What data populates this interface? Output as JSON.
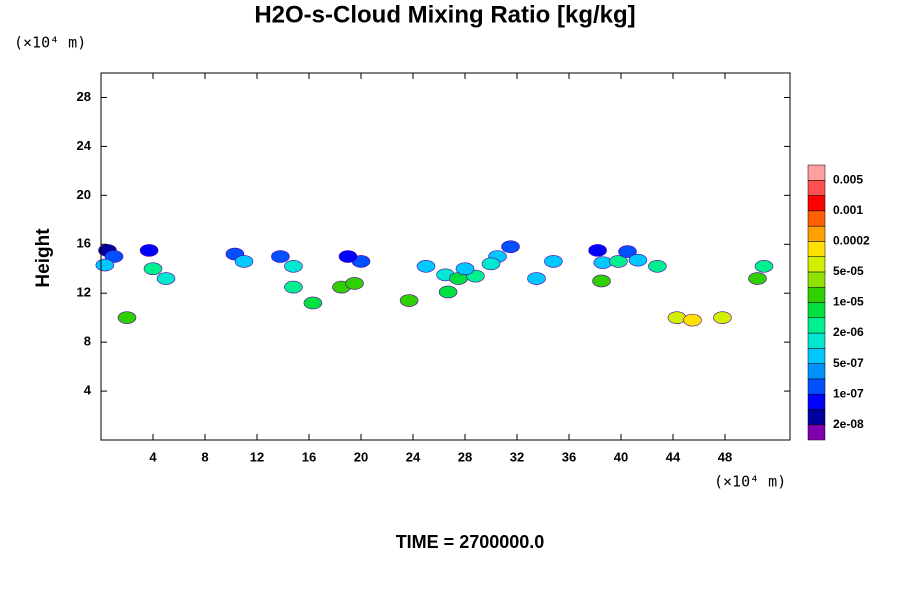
{
  "chart_data": {
    "type": "contour",
    "title": "H2O-s-Cloud Mixing Ratio [kg/kg]",
    "ylabel": "Height",
    "y_unit": "(×10⁴ m)",
    "x_unit": "(×10⁴ m)",
    "footer": "TIME = 2700000.0",
    "xlim": [
      0,
      53
    ],
    "ylim": [
      0,
      30
    ],
    "xticks": [
      4,
      8,
      12,
      16,
      20,
      24,
      28,
      32,
      36,
      40,
      44,
      48
    ],
    "yticks": [
      4,
      8,
      12,
      16,
      20,
      24,
      28
    ],
    "x": [
      0.5,
      1.0,
      0.3,
      3.7,
      4.0,
      5.0,
      10.3,
      11.0,
      13.8,
      14.8,
      14.8,
      16.3,
      18.5,
      19.5,
      20.0,
      19.0,
      25.0,
      26.5,
      27.5,
      28.8,
      28.0,
      30.5,
      31.5,
      30.0,
      34.8,
      38.2,
      38.6,
      38.5,
      39.8,
      40.5,
      41.3,
      42.8,
      44.3,
      45.5,
      47.8,
      50.5,
      51.0,
      2.0,
      23.7,
      26.7,
      33.5
    ],
    "y": [
      15.5,
      15.0,
      14.3,
      15.5,
      14.0,
      13.2,
      15.2,
      14.6,
      15.0,
      14.2,
      12.5,
      11.2,
      12.5,
      12.8,
      14.6,
      15.0,
      14.2,
      13.5,
      13.2,
      13.4,
      14.0,
      15.0,
      15.8,
      14.4,
      14.6,
      15.5,
      14.5,
      13.0,
      14.6,
      15.4,
      14.7,
      14.2,
      10.0,
      9.8,
      10.0,
      13.2,
      14.2,
      10.0,
      11.4,
      12.1,
      13.2
    ],
    "values": [
      3e-08,
      2e-07,
      5e-07,
      5e-08,
      3e-06,
      1e-06,
      1e-07,
      5e-07,
      2e-07,
      1e-06,
      3e-06,
      5e-06,
      2e-05,
      1e-05,
      2e-07,
      5e-08,
      5e-07,
      1e-06,
      5e-06,
      2e-06,
      5e-07,
      5e-07,
      1e-07,
      1e-06,
      5e-07,
      5e-08,
      5e-07,
      1e-05,
      3e-06,
      1e-07,
      5e-07,
      2e-06,
      5e-05,
      0.0001,
      5e-05,
      1e-05,
      2e-06,
      1e-05,
      1e-05,
      5e-06,
      5e-07
    ],
    "colorbar": {
      "colors": [
        "#8000b0",
        "#0000a0",
        "#0000ff",
        "#0050ff",
        "#0090ff",
        "#00c8ff",
        "#00e8d0",
        "#00f090",
        "#00e040",
        "#30d000",
        "#90e000",
        "#d0f000",
        "#ffe000",
        "#ffa000",
        "#ff6000",
        "#ff0000",
        "#ff5050",
        "#ffa0a0"
      ],
      "levels": [
        {
          "value": 2e-08,
          "label": "2e-08"
        },
        {
          "value": 1e-07,
          "label": "1e-07"
        },
        {
          "value": 5e-07,
          "label": "5e-07"
        },
        {
          "value": 2e-06,
          "label": "2e-06"
        },
        {
          "value": 1e-05,
          "label": "1e-05"
        },
        {
          "value": 5e-05,
          "label": "5e-05"
        },
        0.0002,
        0.001,
        0.005
      ]
    }
  }
}
